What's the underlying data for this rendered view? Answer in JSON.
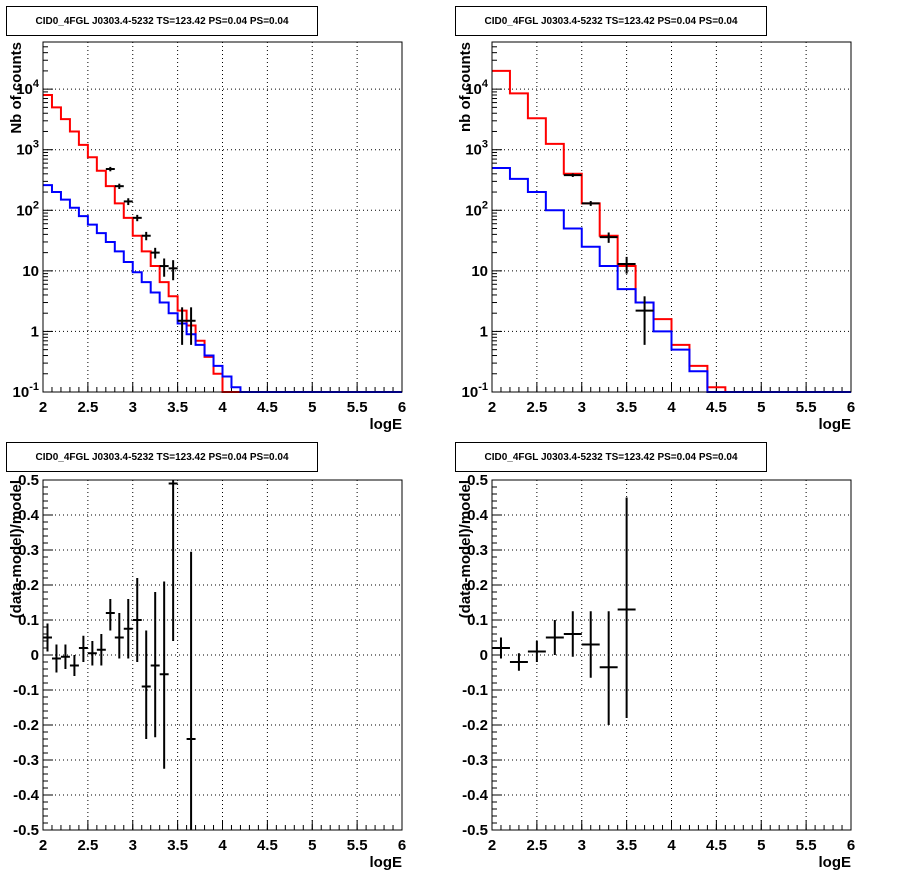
{
  "chart_data": [
    {
      "type": "histogram",
      "title": "CID0_4FGL J0303.4-5232 TS=123.42 PS=0.04 PS=0.04",
      "xlabel": "logE",
      "ylabel": "Nb of counts",
      "xlim": [
        2,
        6
      ],
      "ylim": [
        0.1,
        60000
      ],
      "yscale": "log",
      "grid": true,
      "x_ticks": [
        "2",
        "2.5",
        "3",
        "3.5",
        "4",
        "4.5",
        "5",
        "5.5",
        "6"
      ],
      "y_ticks": [
        "10^-1",
        "1",
        "10",
        "10^2",
        "10^3",
        "10^4"
      ],
      "bin_edges": [
        2.0,
        2.1,
        2.2,
        2.3,
        2.4,
        2.5,
        2.6,
        2.7,
        2.8,
        2.9,
        3.0,
        3.1,
        3.2,
        3.3,
        3.4,
        3.5,
        3.6,
        3.7,
        3.8,
        3.9,
        4.0,
        4.1,
        4.2,
        4.3,
        4.4,
        4.5,
        4.6,
        4.7,
        4.8,
        4.9,
        5.0,
        5.1,
        5.2,
        5.3,
        5.4,
        5.5,
        5.6,
        5.7,
        5.8,
        5.9,
        6.0
      ],
      "series": [
        {
          "color": "#ff0000",
          "kind": "step",
          "values": [
            8000,
            5000,
            3200,
            2000,
            1200,
            750,
            450,
            250,
            130,
            75,
            38,
            21,
            12,
            6.5,
            3.8,
            2.2,
            1.25,
            0.7,
            0.38,
            0.2,
            0.1,
            0.1,
            0.1,
            0.1,
            0.1,
            0.1,
            0.1,
            0.1,
            0.1,
            0.1,
            0.1,
            0.1,
            0.1,
            0.1,
            0.1,
            0.1,
            0.1,
            0.1,
            0.1,
            0.1
          ]
        },
        {
          "color": "#0000ff",
          "kind": "step",
          "values": [
            260,
            200,
            150,
            110,
            80,
            58,
            42,
            30,
            21,
            14,
            9.5,
            6.5,
            4.4,
            3,
            2,
            1.35,
            0.9,
            0.6,
            0.4,
            0.27,
            0.18,
            0.12,
            0.1,
            0.1,
            0.1,
            0.1,
            0.1,
            0.1,
            0.1,
            0.1,
            0.1,
            0.1,
            0.1,
            0.1,
            0.1,
            0.1,
            0.1,
            0.1,
            0.1,
            0.1
          ]
        },
        {
          "color": "#000000",
          "kind": "points",
          "points": [
            {
              "x": 2.75,
              "y": 480,
              "lo": 440,
              "hi": 520
            },
            {
              "x": 2.85,
              "y": 250,
              "lo": 225,
              "hi": 275
            },
            {
              "x": 2.95,
              "y": 140,
              "lo": 122,
              "hi": 158
            },
            {
              "x": 3.05,
              "y": 75,
              "lo": 66,
              "hi": 84
            },
            {
              "x": 3.15,
              "y": 38,
              "lo": 32,
              "hi": 44
            },
            {
              "x": 3.25,
              "y": 20,
              "lo": 16,
              "hi": 24
            },
            {
              "x": 3.35,
              "y": 12,
              "lo": 8,
              "hi": 16
            },
            {
              "x": 3.45,
              "y": 11,
              "lo": 7,
              "hi": 15
            },
            {
              "x": 3.55,
              "y": 1.5,
              "lo": 0.6,
              "hi": 2.5
            },
            {
              "x": 3.65,
              "y": 1.5,
              "lo": 0.6,
              "hi": 2.5
            }
          ]
        }
      ]
    },
    {
      "type": "histogram",
      "title": "CID0_4FGL J0303.4-5232 TS=123.42 PS=0.04 PS=0.04",
      "xlabel": "logE",
      "ylabel": "nb of counts",
      "xlim": [
        2,
        6
      ],
      "ylim": [
        0.1,
        60000
      ],
      "yscale": "log",
      "grid": true,
      "x_ticks": [
        "2",
        "2.5",
        "3",
        "3.5",
        "4",
        "4.5",
        "5",
        "5.5",
        "6"
      ],
      "y_ticks": [
        "10^-1",
        "1",
        "10",
        "10^2",
        "10^3",
        "10^4"
      ],
      "bin_edges": [
        2.0,
        2.2,
        2.4,
        2.6,
        2.8,
        3.0,
        3.2,
        3.4,
        3.6,
        3.8,
        4.0,
        4.2,
        4.4,
        4.6,
        4.8,
        5.0,
        5.2,
        5.4,
        5.6,
        5.8,
        6.0
      ],
      "series": [
        {
          "color": "#ff0000",
          "kind": "step",
          "values": [
            20000,
            8500,
            3300,
            1250,
            400,
            130,
            38,
            12,
            3,
            1.6,
            0.6,
            0.27,
            0.12,
            0.1,
            0.1,
            0.1,
            0.1,
            0.1,
            0.1,
            0.1
          ]
        },
        {
          "color": "#0000ff",
          "kind": "step",
          "values": [
            500,
            330,
            200,
            100,
            50,
            25,
            12,
            5,
            3,
            1,
            0.5,
            0.22,
            0.1,
            0.1,
            0.1,
            0.1,
            0.1,
            0.1,
            0.1,
            0.1
          ]
        },
        {
          "color": "#000000",
          "kind": "points",
          "points": [
            {
              "x": 2.9,
              "y": 380,
              "lo": 355,
              "hi": 405
            },
            {
              "x": 3.1,
              "y": 130,
              "lo": 118,
              "hi": 142
            },
            {
              "x": 3.3,
              "y": 36,
              "lo": 29,
              "hi": 43
            },
            {
              "x": 3.5,
              "y": 13,
              "lo": 9,
              "hi": 17
            },
            {
              "x": 3.7,
              "y": 2.2,
              "lo": 0.6,
              "hi": 3.8
            }
          ]
        }
      ]
    },
    {
      "type": "scatter",
      "title": "CID0_4FGL J0303.4-5232 TS=123.42 PS=0.04 PS=0.04",
      "xlabel": "logE",
      "ylabel": "(data-model)/model",
      "xlim": [
        2,
        6
      ],
      "ylim": [
        -0.5,
        0.5
      ],
      "grid": true,
      "x_ticks": [
        "2",
        "2.5",
        "3",
        "3.5",
        "4",
        "4.5",
        "5",
        "5.5",
        "6"
      ],
      "y_ticks": [
        "-0.5",
        "-0.4",
        "-0.3",
        "-0.2",
        "-0.1",
        "0",
        "0.1",
        "0.2",
        "0.3",
        "0.4",
        "0.5"
      ],
      "half_width": 0.05,
      "points": [
        {
          "x": 2.05,
          "y": 0.05,
          "lo": 0.01,
          "hi": 0.09
        },
        {
          "x": 2.15,
          "y": -0.01,
          "lo": -0.05,
          "hi": 0.03
        },
        {
          "x": 2.25,
          "y": -0.005,
          "lo": -0.04,
          "hi": 0.03
        },
        {
          "x": 2.35,
          "y": -0.03,
          "lo": -0.06,
          "hi": 0.0
        },
        {
          "x": 2.45,
          "y": 0.02,
          "lo": -0.02,
          "hi": 0.055
        },
        {
          "x": 2.55,
          "y": 0.005,
          "lo": -0.03,
          "hi": 0.04
        },
        {
          "x": 2.65,
          "y": 0.015,
          "lo": -0.03,
          "hi": 0.06
        },
        {
          "x": 2.75,
          "y": 0.12,
          "lo": 0.07,
          "hi": 0.16
        },
        {
          "x": 2.85,
          "y": 0.05,
          "lo": -0.01,
          "hi": 0.12
        },
        {
          "x": 2.95,
          "y": 0.075,
          "lo": -0.01,
          "hi": 0.16
        },
        {
          "x": 3.05,
          "y": 0.1,
          "lo": -0.02,
          "hi": 0.22
        },
        {
          "x": 3.15,
          "y": -0.09,
          "lo": -0.24,
          "hi": 0.07
        },
        {
          "x": 3.25,
          "y": -0.03,
          "lo": -0.235,
          "hi": 0.18
        },
        {
          "x": 3.35,
          "y": -0.055,
          "lo": -0.325,
          "hi": 0.21
        },
        {
          "x": 3.45,
          "y": 0.49,
          "lo": 0.04,
          "hi": 0.5
        },
        {
          "x": 3.65,
          "y": -0.24,
          "lo": -0.5,
          "hi": 0.295
        }
      ]
    },
    {
      "type": "scatter",
      "title": "CID0_4FGL J0303.4-5232 TS=123.42 PS=0.04 PS=0.04",
      "xlabel": "logE",
      "ylabel": "(data-model)/model",
      "xlim": [
        2,
        6
      ],
      "ylim": [
        -0.5,
        0.5
      ],
      "grid": true,
      "x_ticks": [
        "2",
        "2.5",
        "3",
        "3.5",
        "4",
        "4.5",
        "5",
        "5.5",
        "6"
      ],
      "y_ticks": [
        "-0.5",
        "-0.4",
        "-0.3",
        "-0.2",
        "-0.1",
        "0",
        "0.1",
        "0.2",
        "0.3",
        "0.4",
        "0.5"
      ],
      "half_width": 0.1,
      "points": [
        {
          "x": 2.1,
          "y": 0.02,
          "lo": -0.01,
          "hi": 0.05
        },
        {
          "x": 2.3,
          "y": -0.02,
          "lo": -0.045,
          "hi": 0.005
        },
        {
          "x": 2.5,
          "y": 0.01,
          "lo": -0.02,
          "hi": 0.04
        },
        {
          "x": 2.7,
          "y": 0.05,
          "lo": 0.0,
          "hi": 0.1
        },
        {
          "x": 2.9,
          "y": 0.06,
          "lo": -0.005,
          "hi": 0.125
        },
        {
          "x": 3.1,
          "y": 0.03,
          "lo": -0.065,
          "hi": 0.125
        },
        {
          "x": 3.3,
          "y": -0.035,
          "lo": -0.2,
          "hi": 0.125
        },
        {
          "x": 3.5,
          "y": 0.13,
          "lo": -0.18,
          "hi": 0.45
        }
      ]
    }
  ]
}
